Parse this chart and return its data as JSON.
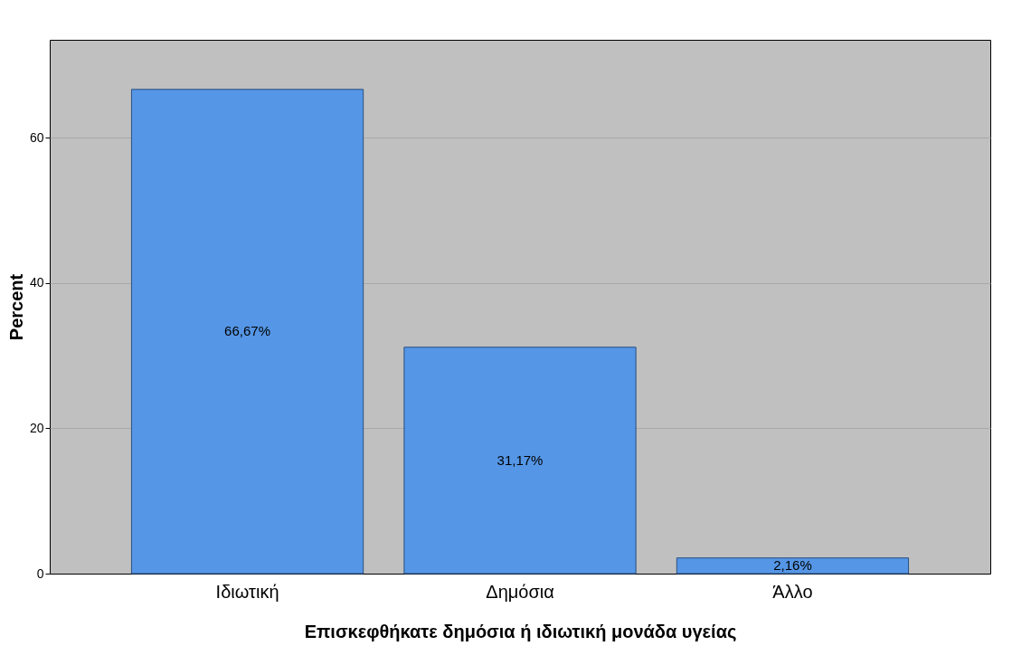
{
  "chart_data": {
    "type": "bar",
    "xlabel": "Επισκεφθήκατε δημόσια ή ιδιωτική μονάδα υγείας",
    "ylabel": "Percent",
    "categories": [
      "Ιδιωτική",
      "Δημόσια",
      "Άλλο"
    ],
    "values": [
      66.67,
      31.17,
      2.16
    ],
    "value_labels": [
      "66,67%",
      "31,17%",
      "2,16%"
    ],
    "color": "#5596e6",
    "ylim": [
      0,
      73.5
    ],
    "yticks": [
      0,
      20,
      40,
      60
    ],
    "grid": "y"
  }
}
